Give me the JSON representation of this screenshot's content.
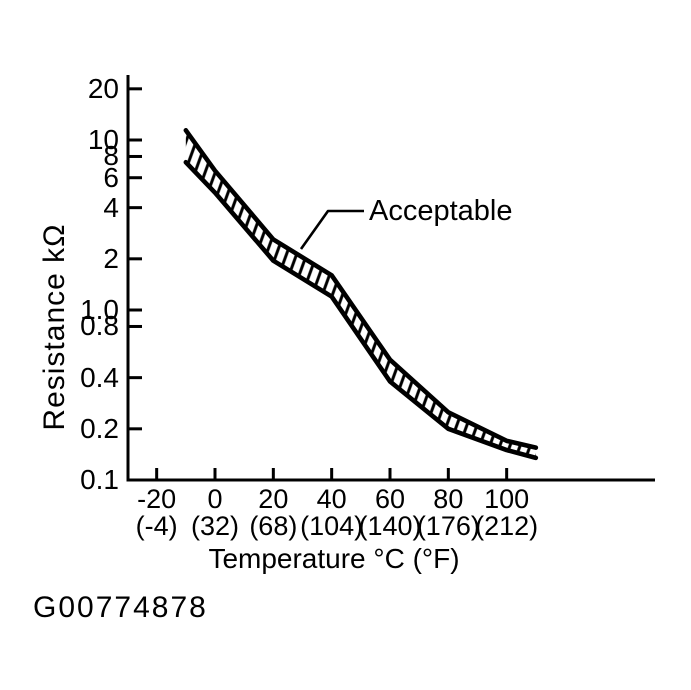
{
  "figure_code": "G00774878",
  "chart_data": {
    "type": "area",
    "title": "",
    "ylabel": "Resistance kΩ",
    "xlabel": "Temperature °C (°F)",
    "annotation": "Acceptable",
    "grid": false,
    "legend_position": "none",
    "x_axis": {
      "unit": "°C (°F)",
      "scale": "linear",
      "range_c": [
        -30,
        151
      ],
      "ticks_c": [
        -20,
        0,
        20,
        40,
        60,
        80,
        100
      ],
      "tick_labels_c": [
        "-20",
        "0",
        "20",
        "40",
        "60",
        "80",
        "100"
      ],
      "tick_labels_f": [
        "(-4)",
        "(32)",
        "(68)",
        "(104)",
        "(140)",
        "(176)",
        "(212)"
      ]
    },
    "y_axis": {
      "unit": "kΩ",
      "scale": "log",
      "range": [
        0.1,
        25
      ],
      "ticks": [
        20,
        10,
        8,
        6,
        4,
        2,
        1.0,
        0.8,
        0.4,
        0.2,
        0.1
      ],
      "tick_labels": [
        "20",
        "10",
        "8",
        "6",
        "4",
        "2",
        "1.0",
        "0.8",
        "0.4",
        "0.2",
        "0.1"
      ]
    },
    "series": [
      {
        "name": "Acceptable band",
        "temps_c": [
          -10,
          0,
          20,
          40,
          60,
          80,
          100,
          110
        ],
        "upper_kohm": [
          11.4,
          6.6,
          2.6,
          1.6,
          0.51,
          0.25,
          0.17,
          0.155
        ],
        "lower_kohm": [
          7.4,
          4.9,
          1.95,
          1.2,
          0.38,
          0.2,
          0.15,
          0.135
        ]
      }
    ],
    "colors": {
      "ink": "#000000",
      "background": "#ffffff"
    }
  }
}
